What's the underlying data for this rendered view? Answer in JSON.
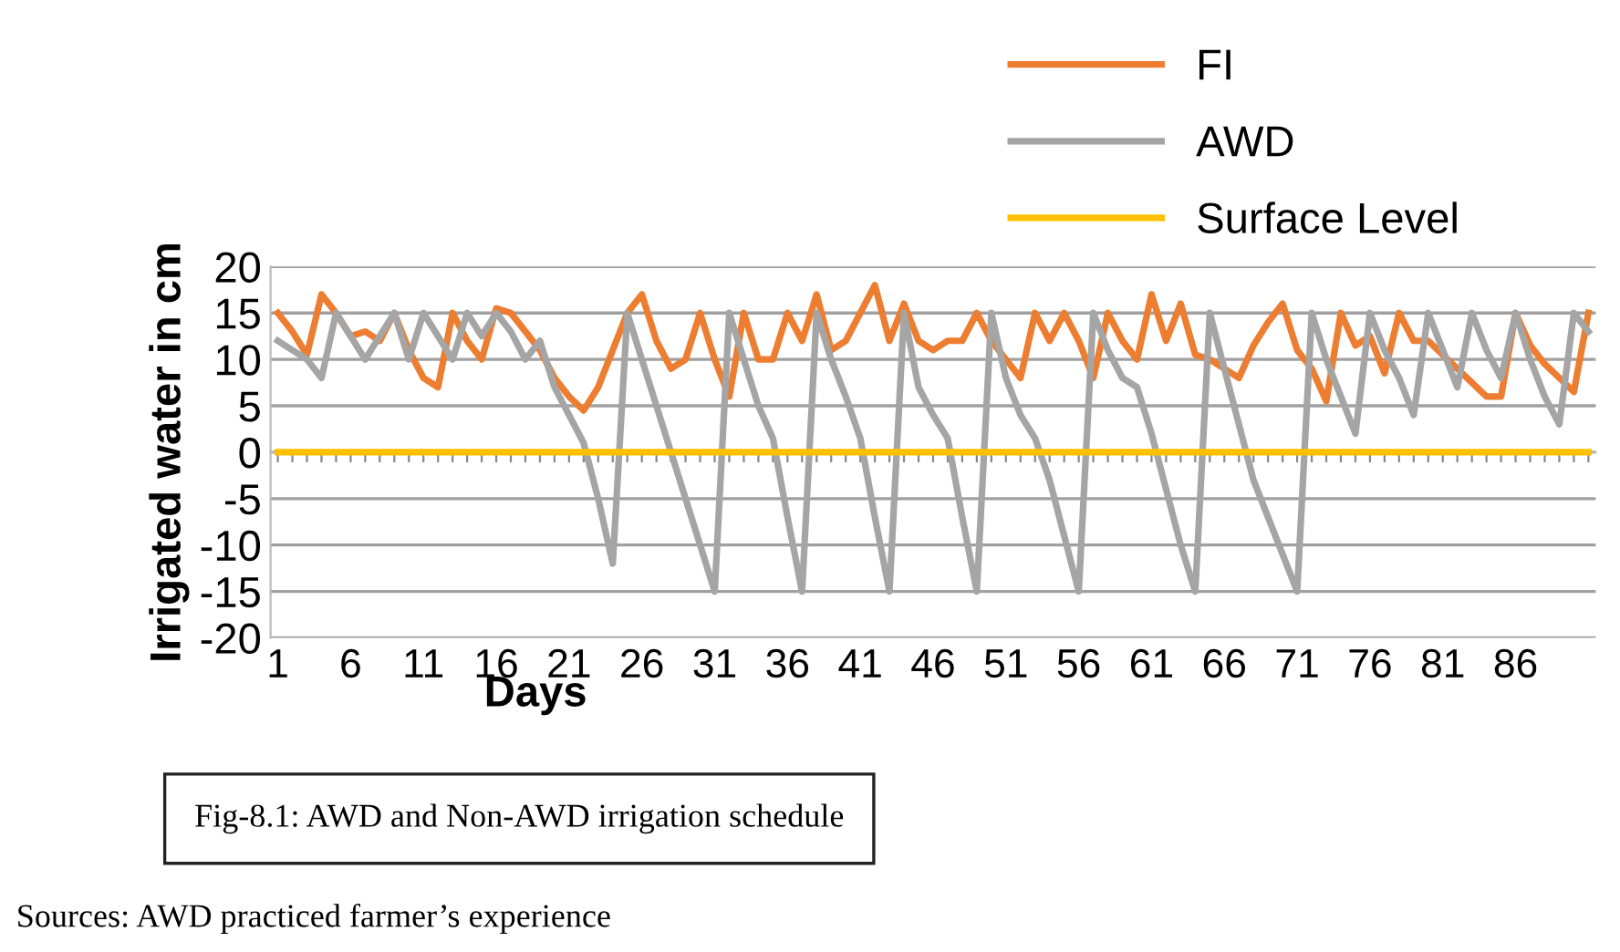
{
  "chart_data": {
    "type": "line",
    "ylabel": "Irrigated water in cm",
    "xlabel": "Days",
    "categories": [
      "1",
      null,
      null,
      null,
      null,
      "6",
      null,
      null,
      null,
      null,
      "11",
      null,
      null,
      null,
      null,
      "16",
      null,
      null,
      null,
      null,
      "21",
      null,
      null,
      null,
      null,
      "26",
      null,
      null,
      null,
      null,
      "31",
      null,
      null,
      null,
      null,
      "36",
      null,
      null,
      null,
      null,
      "41",
      null,
      null,
      null,
      null,
      "46",
      null,
      null,
      null,
      null,
      "51",
      null,
      null,
      null,
      null,
      "56",
      null,
      null,
      null,
      null,
      "61",
      null,
      null,
      null,
      null,
      "66",
      null,
      null,
      null,
      null,
      "71",
      null,
      null,
      null,
      null,
      "76",
      null,
      null,
      null,
      null,
      "81",
      null,
      null,
      null,
      null,
      "86",
      null,
      null,
      null,
      null,
      null
    ],
    "series": [
      {
        "name": "FI",
        "color": "#ed7d31",
        "values": [
          15,
          13,
          10.5,
          17,
          15,
          12.5,
          13,
          12,
          15,
          11,
          8,
          7,
          15,
          12,
          10,
          15.5,
          15,
          13,
          11,
          8,
          6,
          4.5,
          7,
          11,
          15,
          17,
          12,
          9,
          10,
          15,
          10,
          6,
          15,
          10,
          10,
          15,
          12,
          17,
          11,
          12,
          15,
          18,
          12,
          16,
          12,
          11,
          12,
          12,
          15,
          12,
          10,
          8,
          15,
          12,
          15,
          12,
          8,
          15,
          12,
          10,
          17,
          12,
          16,
          10.5,
          10,
          9,
          8,
          11.5,
          14,
          16,
          11,
          9,
          5.5,
          15,
          11.5,
          12.5,
          8.5,
          15,
          12,
          12,
          10.5,
          9,
          7.5,
          6,
          6,
          15,
          11.5,
          9.5,
          8,
          6.5,
          15
        ]
      },
      {
        "name": "AWD",
        "color": "#a5a5a5",
        "values": [
          12,
          11,
          10,
          8,
          15,
          12.5,
          10,
          12.5,
          15,
          10,
          15,
          12.5,
          10,
          15,
          12.5,
          15,
          13,
          10,
          12,
          7,
          4,
          1,
          -5,
          -12,
          15,
          10,
          5,
          0,
          -5,
          -10,
          -15,
          15,
          10,
          5,
          1.5,
          -7,
          -15,
          15,
          10,
          6,
          1.5,
          -7,
          -15,
          15,
          7,
          4,
          1.5,
          -7,
          -15,
          15,
          8,
          4,
          1.5,
          -3,
          -9,
          -15,
          15,
          11,
          8,
          7,
          2,
          -4,
          -10,
          -15,
          15,
          9,
          3,
          -3,
          -7,
          -11,
          -15,
          15,
          10,
          6,
          2,
          15,
          11,
          8,
          4,
          15,
          11,
          7,
          15,
          11,
          8,
          15,
          10,
          6,
          3,
          15,
          13
        ]
      },
      {
        "name": "Surface Level",
        "color": "#ffc000",
        "values": [
          0,
          0,
          0,
          0,
          0,
          0,
          0,
          0,
          0,
          0,
          0,
          0,
          0,
          0,
          0,
          0,
          0,
          0,
          0,
          0,
          0,
          0,
          0,
          0,
          0,
          0,
          0,
          0,
          0,
          0,
          0,
          0,
          0,
          0,
          0,
          0,
          0,
          0,
          0,
          0,
          0,
          0,
          0,
          0,
          0,
          0,
          0,
          0,
          0,
          0,
          0,
          0,
          0,
          0,
          0,
          0,
          0,
          0,
          0,
          0,
          0,
          0,
          0,
          0,
          0,
          0,
          0,
          0,
          0,
          0,
          0,
          0,
          0,
          0,
          0,
          0,
          0,
          0,
          0,
          0,
          0,
          0,
          0,
          0,
          0,
          0,
          0,
          0,
          0,
          0,
          0
        ]
      }
    ],
    "ylim": [
      -20,
      20
    ],
    "yticks": [
      -20,
      -15,
      -10,
      -5,
      0,
      5,
      10,
      15,
      20
    ],
    "grid": "y",
    "legend": "top right",
    "marker": "none",
    "line_style": "solid",
    "annotations": [
      "Fig-8.1: AWD and Non-AWD irrigation schedule",
      "Sources: AWD practiced farmer’s experience"
    ]
  }
}
